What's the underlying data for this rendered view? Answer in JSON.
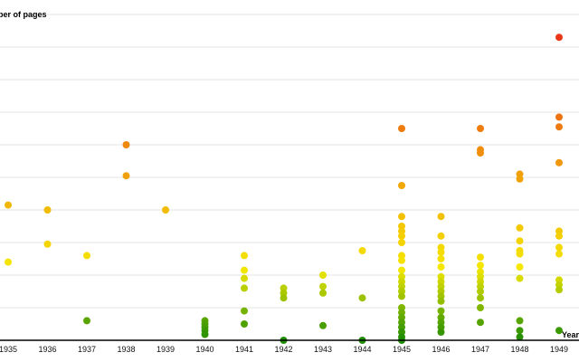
{
  "chart_data": {
    "type": "scatter",
    "ylabel": "Number of pages",
    "xlabel": "Year",
    "xlim": [
      1935,
      1949
    ],
    "ylim": [
      0,
      1000
    ],
    "grid": "horizontal",
    "legend": "none",
    "x_ticks": [
      1935,
      1936,
      1937,
      1938,
      1939,
      1940,
      1941,
      1942,
      1943,
      1944,
      1945,
      1946,
      1947,
      1948,
      1949
    ],
    "color_scale": {
      "low": "#1e8c00",
      "mid": "#f5e800",
      "high": "#e8251a"
    },
    "points": [
      {
        "x": 1935,
        "y": 415
      },
      {
        "x": 1935,
        "y": 240
      },
      {
        "x": 1936,
        "y": 400
      },
      {
        "x": 1936,
        "y": 295
      },
      {
        "x": 1937,
        "y": 260
      },
      {
        "x": 1937,
        "y": 60
      },
      {
        "x": 1938,
        "y": 600
      },
      {
        "x": 1938,
        "y": 505
      },
      {
        "x": 1939,
        "y": 400
      },
      {
        "x": 1940,
        "y": 60
      },
      {
        "x": 1940,
        "y": 50
      },
      {
        "x": 1940,
        "y": 40
      },
      {
        "x": 1940,
        "y": 30
      },
      {
        "x": 1940,
        "y": 18
      },
      {
        "x": 1941,
        "y": 260
      },
      {
        "x": 1941,
        "y": 215
      },
      {
        "x": 1941,
        "y": 190
      },
      {
        "x": 1941,
        "y": 160
      },
      {
        "x": 1941,
        "y": 90
      },
      {
        "x": 1941,
        "y": 50
      },
      {
        "x": 1942,
        "y": 160
      },
      {
        "x": 1942,
        "y": 145
      },
      {
        "x": 1942,
        "y": 130
      },
      {
        "x": 1942,
        "y": 0
      },
      {
        "x": 1943,
        "y": 200
      },
      {
        "x": 1943,
        "y": 165
      },
      {
        "x": 1943,
        "y": 145
      },
      {
        "x": 1943,
        "y": 45
      },
      {
        "x": 1944,
        "y": 275
      },
      {
        "x": 1944,
        "y": 130
      },
      {
        "x": 1944,
        "y": 0
      },
      {
        "x": 1945,
        "y": 650
      },
      {
        "x": 1945,
        "y": 475
      },
      {
        "x": 1945,
        "y": 380
      },
      {
        "x": 1945,
        "y": 350
      },
      {
        "x": 1945,
        "y": 335
      },
      {
        "x": 1945,
        "y": 320
      },
      {
        "x": 1945,
        "y": 300
      },
      {
        "x": 1945,
        "y": 260
      },
      {
        "x": 1945,
        "y": 245
      },
      {
        "x": 1945,
        "y": 215
      },
      {
        "x": 1945,
        "y": 195
      },
      {
        "x": 1945,
        "y": 180
      },
      {
        "x": 1945,
        "y": 165
      },
      {
        "x": 1945,
        "y": 150
      },
      {
        "x": 1945,
        "y": 135
      },
      {
        "x": 1945,
        "y": 100
      },
      {
        "x": 1945,
        "y": 85
      },
      {
        "x": 1945,
        "y": 70
      },
      {
        "x": 1945,
        "y": 55
      },
      {
        "x": 1945,
        "y": 40
      },
      {
        "x": 1945,
        "y": 25
      },
      {
        "x": 1945,
        "y": 10
      },
      {
        "x": 1945,
        "y": 0
      },
      {
        "x": 1946,
        "y": 380
      },
      {
        "x": 1946,
        "y": 320
      },
      {
        "x": 1946,
        "y": 285
      },
      {
        "x": 1946,
        "y": 270
      },
      {
        "x": 1946,
        "y": 250
      },
      {
        "x": 1946,
        "y": 225
      },
      {
        "x": 1946,
        "y": 195
      },
      {
        "x": 1946,
        "y": 180
      },
      {
        "x": 1946,
        "y": 165
      },
      {
        "x": 1946,
        "y": 150
      },
      {
        "x": 1946,
        "y": 135
      },
      {
        "x": 1946,
        "y": 120
      },
      {
        "x": 1946,
        "y": 90
      },
      {
        "x": 1946,
        "y": 70
      },
      {
        "x": 1946,
        "y": 55
      },
      {
        "x": 1946,
        "y": 40
      },
      {
        "x": 1946,
        "y": 25
      },
      {
        "x": 1947,
        "y": 650
      },
      {
        "x": 1947,
        "y": 585
      },
      {
        "x": 1947,
        "y": 575
      },
      {
        "x": 1947,
        "y": 255
      },
      {
        "x": 1947,
        "y": 230
      },
      {
        "x": 1947,
        "y": 210
      },
      {
        "x": 1947,
        "y": 195
      },
      {
        "x": 1947,
        "y": 180
      },
      {
        "x": 1947,
        "y": 165
      },
      {
        "x": 1947,
        "y": 150
      },
      {
        "x": 1947,
        "y": 130
      },
      {
        "x": 1947,
        "y": 100
      },
      {
        "x": 1947,
        "y": 55
      },
      {
        "x": 1948,
        "y": 510
      },
      {
        "x": 1948,
        "y": 495
      },
      {
        "x": 1948,
        "y": 345
      },
      {
        "x": 1948,
        "y": 305
      },
      {
        "x": 1948,
        "y": 275
      },
      {
        "x": 1948,
        "y": 265
      },
      {
        "x": 1948,
        "y": 225
      },
      {
        "x": 1948,
        "y": 190
      },
      {
        "x": 1948,
        "y": 60
      },
      {
        "x": 1948,
        "y": 30
      },
      {
        "x": 1948,
        "y": 10
      },
      {
        "x": 1949,
        "y": 930
      },
      {
        "x": 1949,
        "y": 685
      },
      {
        "x": 1949,
        "y": 655
      },
      {
        "x": 1949,
        "y": 545
      },
      {
        "x": 1949,
        "y": 335
      },
      {
        "x": 1949,
        "y": 320
      },
      {
        "x": 1949,
        "y": 285
      },
      {
        "x": 1949,
        "y": 265
      },
      {
        "x": 1949,
        "y": 185
      },
      {
        "x": 1949,
        "y": 170
      },
      {
        "x": 1949,
        "y": 155
      },
      {
        "x": 1949,
        "y": 30
      }
    ]
  }
}
